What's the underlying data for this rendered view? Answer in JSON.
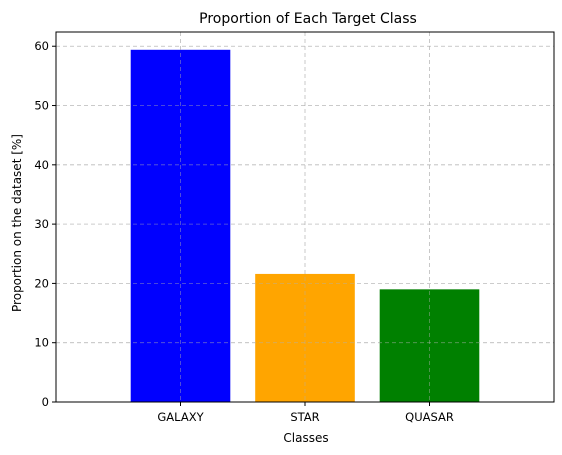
{
  "chart_data": {
    "type": "bar",
    "title": "Proportion of Each Target Class",
    "xlabel": "Classes",
    "ylabel": "Proportion on the dataset [%]",
    "categories": [
      "GALAXY",
      "STAR",
      "QUASAR"
    ],
    "values": [
      59.4,
      21.6,
      19.0
    ],
    "colors": [
      "#0000ff",
      "#ffa500",
      "#008000"
    ],
    "ylim": [
      0,
      62.4
    ],
    "yticks": [
      0,
      10,
      20,
      30,
      40,
      50,
      60
    ],
    "grid": true
  }
}
